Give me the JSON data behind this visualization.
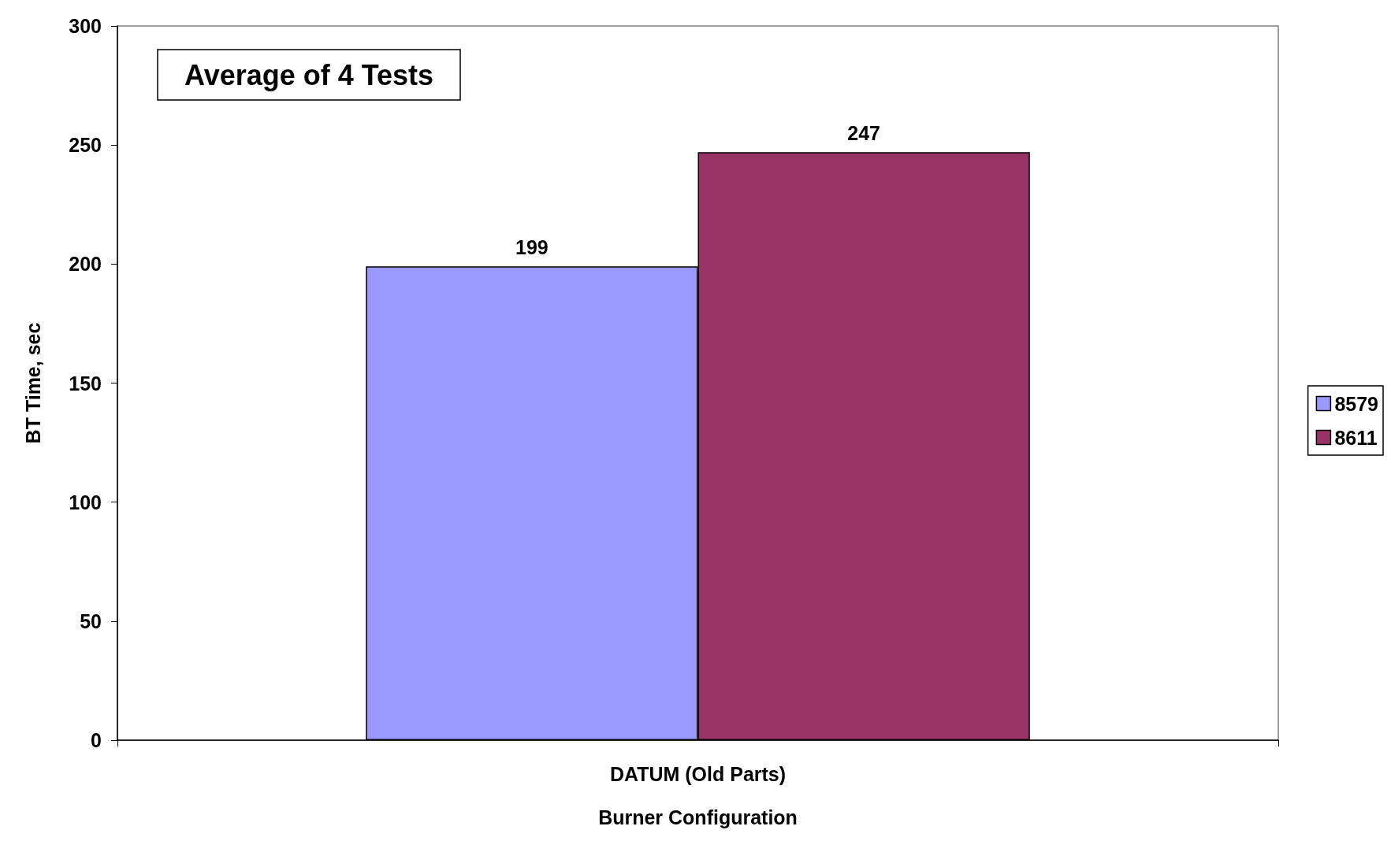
{
  "chart_data": {
    "type": "bar",
    "title": "Average of 4 Tests",
    "xlabel": "Burner Configuration",
    "ylabel": "BT Time, sec",
    "categories": [
      "DATUM (Old Parts)"
    ],
    "series": [
      {
        "name": "8579",
        "color": "#9999ff",
        "values": [
          199
        ]
      },
      {
        "name": "8611",
        "color": "#993366",
        "values": [
          247
        ]
      }
    ],
    "ylim": [
      0,
      300
    ],
    "yticks": [
      0,
      50,
      100,
      150,
      200,
      250,
      300
    ],
    "data_labels": true,
    "legend": "right",
    "grid": false
  }
}
